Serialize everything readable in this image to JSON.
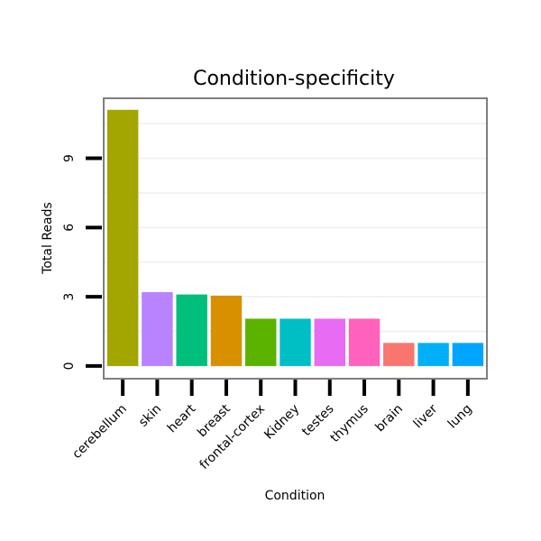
{
  "chart_data": {
    "type": "bar",
    "title": "Condition-specificity",
    "xlabel": "Condition",
    "ylabel": "Total Reads",
    "categories": [
      "cerebellum",
      "skin",
      "heart",
      "breast",
      "frontal-cortex",
      "Kidney",
      "testes",
      "thymus",
      "brain",
      "liver",
      "lung"
    ],
    "values": [
      11.1,
      3.2,
      3.1,
      3.05,
      2.05,
      2.05,
      2.05,
      2.05,
      1.0,
      1.0,
      1.0
    ],
    "colors": [
      "#A3A500",
      "#B983FF",
      "#00BF7D",
      "#D89000",
      "#5BB300",
      "#00BFC4",
      "#E76BF3",
      "#FF62BC",
      "#F8766D",
      "#00B0F6",
      "#00A5FF"
    ],
    "yticks": [
      0,
      3,
      6,
      9
    ],
    "ylim": [
      -0.55,
      11.6
    ],
    "grid": true,
    "legend": "none"
  }
}
